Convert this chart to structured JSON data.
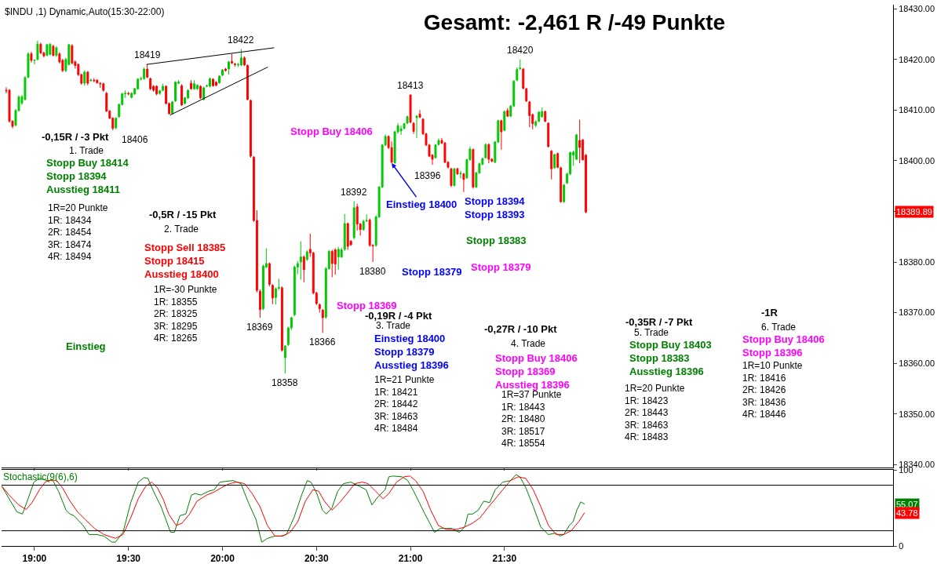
{
  "chart_data": [
    {
      "type": "candlestick",
      "title": "Gesamt: -2,461 R /-49 Punkte",
      "subtitle": "$INDU ,1) Dynamic,Auto(15:30-22:00)",
      "colors": [
        "#ff0000",
        "#ff0000",
        "#ff0000",
        "#00c800",
        "#00c800",
        "#00c800",
        "#00c800",
        "#00c800",
        "#ff0000",
        "#00c800",
        "#00c800",
        "#ff0000",
        "#ff0000",
        "#00c800",
        "#00c800",
        "#ff0000",
        "#00c800",
        "#ff0000",
        "#ff0000",
        "#00c800",
        "#00c800",
        "#ff0000",
        "#ff0000",
        "#ff0000",
        "#ff0000",
        "#00c800",
        "#ff0000",
        "#00c800",
        "#ff0000",
        "#ff0000",
        "#ff0000",
        "#ff0000",
        "#ff0000",
        "#ff0000",
        "#ff0000",
        "#00c800",
        "#00c800",
        "#00c800",
        "#00c800",
        "#ff0000",
        "#00c800",
        "#00c800",
        "#00c800",
        "#00c800",
        "#00c800",
        "#ff0000",
        "#ff0000",
        "#ff0000",
        "#ff0000",
        "#00c800",
        "#00c800",
        "#ff0000",
        "#ff0000",
        "#00c800",
        "#00c800",
        "#00c800",
        "#ff0000",
        "#00c800",
        "#00c800",
        "#ff0000",
        "#00c800",
        "#00c800",
        "#ff0000",
        "#00c800",
        "#00c800",
        "#00c800",
        "#ff0000",
        "#ff0000",
        "#00c800",
        "#00c800",
        "#ff0000",
        "#00c800",
        "#ff0000",
        "#ff0000",
        "#00c800",
        "#00c800",
        "#ff0000",
        "#ff0000",
        "#ff0000",
        "#ff0000",
        "#ff0000",
        "#ff0000",
        "#00c800",
        "#00c800",
        "#ff0000",
        "#ff0000",
        "#00c800",
        "#00c800",
        "#ff0000",
        "#00c800",
        "#00c800",
        "#00c800",
        "#00c800",
        "#00c800",
        "#00c800",
        "#ff0000",
        "#00c800",
        "#ff0000",
        "#ff0000",
        "#ff0000",
        "#ff0000",
        "#ff0000",
        "#00c800",
        "#00c800",
        "#ff0000",
        "#ff0000",
        "#00c800",
        "#00c800",
        "#00c800",
        "#ff0000",
        "#ff0000",
        "#00c800",
        "#ff0000",
        "#ff0000",
        "#00c800",
        "#00c800",
        "#ff0000",
        "#ff0000",
        "#00c800",
        "#00c800",
        "#00c800",
        "#00c800",
        "#ff0000",
        "#ff0000",
        "#00c800",
        "#00c800",
        "#00c800",
        "#00c800",
        "#00c800",
        "#ff0000",
        "#ff0000",
        "#00c800",
        "#ff0000",
        "#ff0000",
        "#ff0000",
        "#ff0000",
        "#ff0000",
        "#00c800",
        "#00c800",
        "#ff0000",
        "#ff0000",
        "#ff0000",
        "#ff0000",
        "#00c800",
        "#ff0000",
        "#00c800",
        "#ff0000",
        "#00c800",
        "#00c800",
        "#ff0000",
        "#00c800",
        "#00c800",
        "#00c800",
        "#00c800",
        "#ff0000",
        "#ff0000",
        "#00c800",
        "#00c800",
        "#ff0000",
        "#00c800",
        "#ff0000",
        "#00c800",
        "#00c800",
        "#00c800",
        "#00c800",
        "#ff0000",
        "#ff0000",
        "#ff0000",
        "#ff0000",
        "#00c800",
        "#00c800",
        "#00c800",
        "#ff0000",
        "#ff0000",
        "#ff0000",
        "#00c800",
        "#ff0000",
        "#ff0000",
        "#00c800",
        "#00c800",
        "#00c800",
        "#00c800",
        "#00c800",
        "#ff0000",
        "#ff0000",
        "#ff0000"
      ],
      "x": [
        18.85,
        18.8667,
        18.8833,
        18.9,
        18.9167,
        18.9333,
        18.95,
        18.9667,
        18.9833,
        19,
        19.0167,
        19.0333,
        19.05,
        19.0667,
        19.0833,
        19.1,
        19.1167,
        19.1333,
        19.15,
        19.1667,
        19.1833,
        19.2,
        19.2167,
        19.2333,
        19.25,
        19.2667,
        19.2833,
        19.3,
        19.3167,
        19.3333,
        19.35,
        19.3667,
        19.3833,
        19.4,
        19.4167,
        19.4333,
        19.45,
        19.4667,
        19.4833,
        19.5,
        19.5167,
        19.5333,
        19.55,
        19.5667,
        19.5833,
        19.6,
        19.6167,
        19.6333,
        19.65,
        19.6667,
        19.6833,
        19.7,
        19.7167,
        19.7333,
        19.75,
        19.7667,
        19.7833,
        19.8,
        19.8167,
        19.8333,
        19.85,
        19.8667,
        19.8833,
        19.9,
        19.9167,
        19.9333,
        19.95,
        19.9667,
        19.9833,
        20,
        20.0167,
        20.0333,
        20.05,
        20.0667,
        20.0833,
        20.1,
        20.1167,
        20.1333,
        20.15,
        20.1667,
        20.1833,
        20.2,
        20.2167,
        20.2333,
        20.25,
        20.2667,
        20.2833,
        20.3,
        20.3167,
        20.3333,
        20.35,
        20.3667,
        20.3833,
        20.4,
        20.4167,
        20.4333,
        20.45,
        20.4667,
        20.4833,
        20.5,
        20.5167,
        20.5333,
        20.55,
        20.5667,
        20.5833,
        20.6,
        20.6167,
        20.6333,
        20.65,
        20.6667,
        20.6833,
        20.7,
        20.7167,
        20.7333,
        20.75,
        20.7667,
        20.7833,
        20.8,
        20.8167,
        20.8333,
        20.85,
        20.8667,
        20.8833,
        20.9,
        20.9167,
        20.9333,
        20.95,
        20.9667,
        20.9833,
        21,
        21.0167,
        21.0333,
        21.05,
        21.0667,
        21.0833,
        21.1,
        21.1167,
        21.1333,
        21.15,
        21.1667,
        21.1833,
        21.2,
        21.2167,
        21.2333,
        21.25,
        21.2667,
        21.2833,
        21.3,
        21.3167,
        21.3333,
        21.35,
        21.3667,
        21.3833,
        21.4,
        21.4167,
        21.4333,
        21.45,
        21.4667,
        21.4833,
        21.5,
        21.5167,
        21.5333,
        21.55,
        21.5667,
        21.5833,
        21.6,
        21.6167,
        21.6333,
        21.65,
        21.6667,
        21.6833,
        21.7,
        21.7167,
        21.7333,
        21.75,
        21.7667,
        21.7833,
        21.8,
        21.8167,
        21.8333,
        21.85,
        21.8667,
        21.8833,
        21.9,
        21.9167,
        21.9333
      ],
      "ohlc": [
        [
          18413.9,
          18414.5,
          18413.3,
          18413.8
        ],
        [
          18413.9,
          18414.2,
          18407.5,
          18407.8
        ],
        [
          18407.8,
          18408.0,
          18406.4,
          18406.8
        ],
        [
          18407.0,
          18410.2,
          18406.8,
          18409.9
        ],
        [
          18409.9,
          18412.9,
          18409.7,
          18412.6
        ],
        [
          18411.4,
          18413.0,
          18411.0,
          18412.6
        ],
        [
          18412.1,
          18416.7,
          18411.9,
          18416.4
        ],
        [
          18416.5,
          18421.4,
          18416.3,
          18421.1
        ],
        [
          18421.1,
          18421.5,
          18419.4,
          18419.8
        ],
        [
          18419.8,
          18420.0,
          18419.0,
          18419.9
        ],
        [
          18420.0,
          18423.7,
          18419.8,
          18423.0
        ],
        [
          18423.0,
          18423.3,
          18421.0,
          18421.3
        ],
        [
          18421.3,
          18421.5,
          18420.4,
          18420.7
        ],
        [
          18420.8,
          18423.1,
          18420.6,
          18422.9
        ],
        [
          18421.0,
          18423.2,
          18420.8,
          18423.0
        ],
        [
          18422.6,
          18422.9,
          18420.6,
          18420.8
        ],
        [
          18420.8,
          18422.6,
          18420.5,
          18422.3
        ],
        [
          18421.1,
          18421.4,
          18419.2,
          18419.5
        ],
        [
          18419.8,
          18420.1,
          18417.5,
          18417.8
        ],
        [
          18417.8,
          18420.3,
          18417.5,
          18420.0
        ],
        [
          18419.0,
          18423.1,
          18418.8,
          18422.9
        ],
        [
          18422.7,
          18423.0,
          18419.0,
          18419.3
        ],
        [
          18419.5,
          18419.8,
          18418.2,
          18418.8
        ],
        [
          18419.0,
          18419.2,
          18416.7,
          18417.0
        ],
        [
          18417.0,
          18417.2,
          18415.0,
          18415.3
        ],
        [
          18415.3,
          18417.8,
          18414.8,
          18417.5
        ],
        [
          18417.5,
          18417.7,
          18414.9,
          18415.3
        ],
        [
          18415.8,
          18416.2,
          18415.6,
          18415.9
        ],
        [
          18415.9,
          18416.3,
          18415.5,
          18415.8
        ],
        [
          18415.9,
          18416.1,
          18415.2,
          18415.4
        ],
        [
          18415.3,
          18415.5,
          18414.4,
          18415.2
        ],
        [
          18415.2,
          18415.4,
          18413.6,
          18413.9
        ],
        [
          18413.3,
          18413.6,
          18409.6,
          18409.8
        ],
        [
          18409.8,
          18410.0,
          18408.2,
          18408.4
        ],
        [
          18408.4,
          18408.6,
          18406.0,
          18406.4
        ],
        [
          18406.5,
          18408.6,
          18406.2,
          18408.4
        ],
        [
          18408.7,
          18411.3,
          18408.5,
          18411.1
        ],
        [
          18411.1,
          18413.4,
          18410.9,
          18413.2
        ],
        [
          18413.2,
          18413.9,
          18412.4,
          18413.3
        ],
        [
          18413.3,
          18413.6,
          18412.9,
          18413.2
        ],
        [
          18412.5,
          18413.5,
          18412.3,
          18413.3
        ],
        [
          18413.2,
          18414.4,
          18413.0,
          18414.2
        ],
        [
          18414.2,
          18416.3,
          18414.0,
          18416.1
        ],
        [
          18416.1,
          18416.6,
          18415.9,
          18416.2
        ],
        [
          18416.2,
          18418.4,
          18416.0,
          18418.1
        ],
        [
          18418.1,
          18419.0,
          18416.3,
          18416.5
        ],
        [
          18416.2,
          18416.4,
          18413.9,
          18414.2
        ],
        [
          18414.7,
          18414.9,
          18413.6,
          18413.9
        ],
        [
          18414.7,
          18414.9,
          18412.9,
          18413.2
        ],
        [
          18413.3,
          18414.0,
          18413.0,
          18413.8
        ],
        [
          18413.9,
          18415.2,
          18413.7,
          18414.7
        ],
        [
          18414.7,
          18414.9,
          18411.1,
          18411.3
        ],
        [
          18411.3,
          18411.5,
          18409.1,
          18409.3
        ],
        [
          18409.3,
          18411.8,
          18409.1,
          18411.6
        ],
        [
          18411.8,
          18415.7,
          18411.6,
          18415.5
        ],
        [
          18415.3,
          18415.9,
          18415.1,
          18415.5
        ],
        [
          18414.8,
          18415.1,
          18410.8,
          18411.0
        ],
        [
          18411.3,
          18412.6,
          18411.1,
          18412.4
        ],
        [
          18412.4,
          18414.1,
          18412.2,
          18413.9
        ],
        [
          18415.3,
          18415.9,
          18414.0,
          18414.2
        ],
        [
          18414.2,
          18415.9,
          18414.0,
          18415.2
        ],
        [
          18414.2,
          18415.1,
          18414.0,
          18414.9
        ],
        [
          18414.7,
          18414.9,
          18412.2,
          18412.4
        ],
        [
          18412.1,
          18414.6,
          18411.9,
          18414.4
        ],
        [
          18414.7,
          18415.0,
          18414.5,
          18414.8
        ],
        [
          18414.7,
          18416.4,
          18414.5,
          18416.2
        ],
        [
          18416.1,
          18416.3,
          18414.6,
          18414.8
        ],
        [
          18415.5,
          18415.7,
          18414.7,
          18414.9
        ],
        [
          18415.4,
          18416.9,
          18415.2,
          18416.7
        ],
        [
          18416.9,
          18418.1,
          18416.7,
          18417.9
        ],
        [
          18418.1,
          18418.3,
          18417.6,
          18417.8
        ],
        [
          18418.1,
          18419.7,
          18417.0,
          18419.5
        ],
        [
          18419.6,
          18421.1,
          18419.1,
          18419.3
        ],
        [
          18419.1,
          18419.3,
          18418.6,
          18419.0
        ],
        [
          18418.9,
          18419.3,
          18418.5,
          18419.0
        ],
        [
          18418.9,
          18422.0,
          18418.7,
          18420.3
        ],
        [
          18420.3,
          18420.6,
          18418.7,
          18418.9
        ],
        [
          18418.8,
          18419.0,
          18411.9,
          18412.1
        ],
        [
          18411.9,
          18412.1,
          18400.6,
          18400.9
        ],
        [
          18400.7,
          18400.9,
          18387.9,
          18388.2
        ],
        [
          18388.2,
          18390.2,
          18374.0,
          18374.4
        ],
        [
          18374.2,
          18374.6,
          18369.0,
          18370.6
        ],
        [
          18370.8,
          18379.5,
          18370.5,
          18379.2
        ],
        [
          18379.0,
          18382.7,
          18378.8,
          18379.7
        ],
        [
          18379.7,
          18379.9,
          18375.2,
          18375.6
        ],
        [
          18375.4,
          18375.6,
          18371.7,
          18372.9
        ],
        [
          18373.0,
          18375.0,
          18371.6,
          18374.7
        ],
        [
          18374.8,
          18376.7,
          18374.5,
          18375.0
        ],
        [
          18374.9,
          18375.2,
          18362.3,
          18362.6
        ],
        [
          18361.1,
          18363.6,
          18358.0,
          18363.4
        ],
        [
          18363.7,
          18367.2,
          18363.4,
          18367.0
        ],
        [
          18367.0,
          18369.2,
          18366.6,
          18369.0
        ],
        [
          18369.6,
          18379.3,
          18369.3,
          18379.0
        ],
        [
          18379.0,
          18380.2,
          18377.6,
          18379.7
        ],
        [
          18380.0,
          18384.1,
          18376.5,
          18381.0
        ],
        [
          18381.0,
          18381.3,
          18376.0,
          18378.5
        ],
        [
          18380.5,
          18382.3,
          18380.2,
          18382.0
        ],
        [
          18382.5,
          18385.6,
          18381.0,
          18381.8
        ],
        [
          18381.8,
          18382.0,
          18373.6,
          18373.9
        ],
        [
          18373.9,
          18374.1,
          18371.5,
          18371.8
        ],
        [
          18371.6,
          18371.8,
          18370.0,
          18370.8
        ],
        [
          18370.5,
          18370.7,
          18366.0,
          18369.0
        ],
        [
          18369.1,
          18379.0,
          18368.8,
          18378.7
        ],
        [
          18378.7,
          18382.4,
          18378.5,
          18382.1
        ],
        [
          18382.1,
          18382.4,
          18377.0,
          18379.7
        ],
        [
          18382.4,
          18382.7,
          18377.5,
          18379.6
        ],
        [
          18381.0,
          18383.0,
          18378.5,
          18382.5
        ],
        [
          18381.0,
          18382.8,
          18380.8,
          18382.4
        ],
        [
          18382.5,
          18389.5,
          18382.2,
          18387.6
        ],
        [
          18387.6,
          18387.8,
          18382.4,
          18383.1
        ],
        [
          18384.1,
          18384.3,
          18383.2,
          18383.4
        ],
        [
          18384.8,
          18392.0,
          18384.5,
          18390.7
        ],
        [
          18390.9,
          18391.5,
          18386.2,
          18387.5
        ],
        [
          18387.5,
          18387.7,
          18385.2,
          18386.4
        ],
        [
          18386.4,
          18388.4,
          18386.2,
          18388.0
        ],
        [
          18388.1,
          18389.4,
          18387.9,
          18388.2
        ],
        [
          18388.3,
          18388.6,
          18383.0,
          18383.3
        ],
        [
          18383.3,
          18383.5,
          18380.0,
          18383.2
        ],
        [
          18383.3,
          18389.2,
          18383.0,
          18388.9
        ],
        [
          18388.9,
          18395.0,
          18388.7,
          18394.8
        ],
        [
          18394.8,
          18403.3,
          18394.6,
          18403.1
        ],
        [
          18403.1,
          18405.2,
          18402.9,
          18404.8
        ],
        [
          18404.8,
          18405.0,
          18402.3,
          18402.6
        ],
        [
          18402.6,
          18403.8,
          18399.5,
          18399.7
        ],
        [
          18399.6,
          18405.9,
          18399.4,
          18405.7
        ],
        [
          18405.7,
          18407.4,
          18405.4,
          18406.9
        ],
        [
          18405.9,
          18406.9,
          18405.1,
          18406.3
        ],
        [
          18406.4,
          18407.5,
          18406.2,
          18407.3
        ],
        [
          18407.4,
          18408.9,
          18407.2,
          18408.7
        ],
        [
          18413.0,
          18413.0,
          18407.4,
          18407.6
        ],
        [
          18407.4,
          18407.6,
          18405.3,
          18405.8
        ],
        [
          18408.5,
          18409.0,
          18404.5,
          18408.8
        ],
        [
          18409.2,
          18410.0,
          18408.4,
          18408.6
        ],
        [
          18408.2,
          18408.4,
          18405.1,
          18405.3
        ],
        [
          18405.3,
          18405.5,
          18402.9,
          18403.1
        ],
        [
          18403.1,
          18403.3,
          18400.7,
          18400.9
        ],
        [
          18401.1,
          18401.3,
          18399.2,
          18400.3
        ],
        [
          18400.6,
          18403.3,
          18400.4,
          18403.1
        ],
        [
          18403.2,
          18404.4,
          18403.0,
          18404.0
        ],
        [
          18404.0,
          18404.5,
          18403.3,
          18403.5
        ],
        [
          18403.5,
          18403.7,
          18399.5,
          18399.7
        ],
        [
          18399.7,
          18399.9,
          18398.5,
          18398.7
        ],
        [
          18398.4,
          18398.6,
          18394.8,
          18395.1
        ],
        [
          18395.1,
          18398.6,
          18394.9,
          18398.4
        ],
        [
          18398.4,
          18398.6,
          18397.2,
          18397.4
        ],
        [
          18397.4,
          18398.0,
          18396.5,
          18397.5
        ],
        [
          18397.4,
          18397.6,
          18393.8,
          18396.3
        ],
        [
          18396.6,
          18400.4,
          18396.4,
          18400.2
        ],
        [
          18400.2,
          18402.8,
          18400.0,
          18402.3
        ],
        [
          18402.2,
          18402.4,
          18394.5,
          18394.8
        ],
        [
          18394.8,
          18397.8,
          18394.6,
          18397.6
        ],
        [
          18397.6,
          18399.6,
          18397.4,
          18399.4
        ],
        [
          18399.3,
          18400.6,
          18399.1,
          18400.4
        ],
        [
          18400.6,
          18403.4,
          18400.4,
          18403.2
        ],
        [
          18403.2,
          18403.4,
          18399.5,
          18400.3
        ],
        [
          18400.3,
          18400.5,
          18399.7,
          18399.9
        ],
        [
          18399.7,
          18403.9,
          18399.5,
          18403.7
        ],
        [
          18403.7,
          18408.1,
          18403.5,
          18407.9
        ],
        [
          18407.9,
          18408.1,
          18402.2,
          18405.7
        ],
        [
          18406.0,
          18409.9,
          18405.8,
          18409.7
        ],
        [
          18409.9,
          18410.4,
          18408.6,
          18408.8
        ],
        [
          18408.8,
          18411.0,
          18408.6,
          18410.8
        ],
        [
          18410.8,
          18415.9,
          18410.6,
          18415.7
        ],
        [
          18415.9,
          18418.4,
          18415.7,
          18418.0
        ],
        [
          18418.2,
          18420.0,
          18417.9,
          18418.3
        ],
        [
          18418.1,
          18418.3,
          18414.1,
          18414.3
        ],
        [
          18414.2,
          18414.4,
          18411.6,
          18411.8
        ],
        [
          18411.6,
          18411.8,
          18406.6,
          18408.9
        ],
        [
          18409.1,
          18409.3,
          18406.2,
          18407.3
        ],
        [
          18407.0,
          18408.0,
          18406.6,
          18407.7
        ],
        [
          18407.8,
          18409.8,
          18407.6,
          18409.6
        ],
        [
          18408.7,
          18410.5,
          18408.5,
          18409.7
        ],
        [
          18409.7,
          18409.9,
          18407.6,
          18407.8
        ],
        [
          18407.4,
          18407.6,
          18402.6,
          18402.8
        ],
        [
          18401.9,
          18402.1,
          18396.3,
          18398.4
        ],
        [
          18398.6,
          18401.4,
          18398.4,
          18401.2
        ],
        [
          18401.4,
          18401.6,
          18398.5,
          18398.7
        ],
        [
          18398.6,
          18398.8,
          18391.7,
          18391.9
        ],
        [
          18391.9,
          18395.4,
          18391.7,
          18395.2
        ],
        [
          18395.6,
          18397.6,
          18395.4,
          18397.4
        ],
        [
          18397.4,
          18401.8,
          18397.2,
          18401.6
        ],
        [
          18401.1,
          18402.0,
          18399.0,
          18401.7
        ],
        [
          18400.3,
          18405.3,
          18400.1,
          18405.1
        ],
        [
          18404.0,
          18408.1,
          18399.5,
          18402.6
        ],
        [
          18404.1,
          18404.3,
          18400.0,
          18400.2
        ],
        [
          18401.1,
          18401.3,
          18389.6,
          18389.89
        ]
      ],
      "series": [
        {
          "type": "line",
          "color": "#000000",
          "x": [
            19.5958,
            20.275
          ],
          "values": [
            18419.0,
            18422.3
          ]
        },
        {
          "type": "line",
          "color": "#000000",
          "x": [
            19.7208,
            20.2417
          ],
          "values": [
            18409.0,
            18418.5
          ]
        }
      ],
      "xlim": [
        18.825,
        23.567
      ],
      "xticks": [
        {
          "value": 19,
          "label": null
        },
        {
          "value": 19.5,
          "label": null
        },
        {
          "value": 20,
          "label": null
        },
        {
          "value": 20.5,
          "label": null
        },
        {
          "value": 21,
          "label": null
        },
        {
          "value": 21.5,
          "label": null
        }
      ],
      "ylim": [
        18339.4,
        18430.8
      ],
      "yticks": [
        {
          "value": 18340,
          "label": "18340.00"
        },
        {
          "value": 18350,
          "label": "18350.00"
        },
        {
          "value": 18360,
          "label": "18360.00"
        },
        {
          "value": 18370,
          "label": "18370.00"
        },
        {
          "value": 18380,
          "label": "18380.00"
        },
        {
          "value": 18390,
          "label": null
        },
        {
          "value": 18400,
          "label": "18400.00"
        },
        {
          "value": 18410,
          "label": "18410.00"
        },
        {
          "value": 18420,
          "label": "18420.00"
        },
        {
          "value": 18430,
          "label": "18430.00"
        }
      ],
      "tick_labels": "y",
      "annotations": [
        {
          "text": "18419",
          "x": 19.6,
          "y": 18419.0
        },
        {
          "text": "18422",
          "x": 20.1,
          "y": 18422.0
        },
        {
          "text": "18406",
          "x": 19.4333,
          "y": 18406.0
        },
        "-0,15R / -3 Pkt",
        "1. Trade",
        "Stopp Buy 18414\nStopp 18394\nAusstieg 18411",
        "1R=20 Punkte\n1R: 18434\n2R: 18454\n3R: 18474\n4R: 18494",
        "Einstieg",
        "-0,5R / -15 Pkt",
        "2. Trade",
        "Stopp Sell 18385\nStopp 18415\nAusstieg 18400",
        "1R=-30 Punkte\n1R: 18355\n2R: 18325\n3R: 18295\n4R: 18265",
        {
          "text": "18369",
          "x": 20.2,
          "y": 18369.0
        },
        {
          "text": "18366",
          "x": 20.5333,
          "y": 18366.0
        },
        {
          "text": "18358",
          "x": 20.3333,
          "y": 18358.0
        },
        {
          "text": "18392",
          "x": 20.7,
          "y": 18392.0
        },
        {
          "text": "18380",
          "x": 20.8,
          "y": 18380.0
        },
        {
          "text": "18413",
          "x": 21.0,
          "y": 18413.0
        },
        "18396",
        {
          "text": "18420",
          "x": 21.5833,
          "y": 18420.0
        },
        "Stopp Buy 18406",
        {
          "text": "Einstieg 18400",
          "x": 20.9,
          "y": 18399.5
        },
        "Stopp 18394\nStopp 18393",
        "Stopp 18383",
        "Stopp 18379",
        "Stopp 18379",
        "Stopp 18369",
        "-0,19R / -4 Pkt",
        "3. Trade",
        "Einstieg 18400\nStopp 18379\nAusstieg 18396",
        "1R=21 Punkte\n1R: 18421\n2R: 18442\n3R: 18463\n4R: 18484",
        "-0,27R / -10 Pkt",
        "4. Trade",
        "Stopp Buy 18406\nStopp 18369\nAusstieg 18396",
        "1R=37 Punkte\n1R: 18443\n2R: 18480\n3R: 18517\n4R: 18554",
        "-0,35R / -7 Pkt",
        "5. Trade",
        "Stopp Buy 18403\nStopp 18383\nAusstieg 18396",
        "1R=20 Punkte\n1R: 18423\n2R: 18443\n3R: 18463\n4R: 18483",
        "-1R",
        "6. Trade",
        "Stopp Buy 18406\nStopp 18396",
        "1R=10 Punkte\n1R: 18416\n2R: 18426\n3R: 18436\n4R: 18446",
        "18389.89"
      ]
    },
    {
      "type": "line",
      "series": [
        {
          "color": "#008000",
          "x": [
            18.825,
            18.906,
            18.936,
            18.966,
            18.997,
            19.027,
            19.067,
            19.098,
            19.128,
            19.168,
            19.189,
            19.209,
            19.259,
            19.29,
            19.33,
            19.37,
            19.411,
            19.431,
            19.471,
            19.512,
            19.552,
            19.583,
            19.603,
            19.633,
            19.673,
            19.724,
            19.744,
            19.774,
            19.805,
            19.835,
            19.855,
            19.886,
            19.926,
            19.956,
            19.987,
            20.017,
            20.057,
            20.098,
            20.138,
            20.178,
            20.209,
            20.239,
            20.279,
            20.31,
            20.34,
            20.38,
            20.421,
            20.451,
            20.471,
            20.502,
            20.532,
            20.552,
            20.582,
            20.613,
            20.643,
            20.683,
            20.724,
            20.764,
            20.795,
            20.825,
            20.845,
            20.865,
            20.885,
            20.906,
            20.956,
            20.986,
            21.017,
            21.047,
            21.077,
            21.128,
            21.158,
            21.188,
            21.219,
            21.259,
            21.289,
            21.306,
            21.33,
            21.36,
            21.39,
            21.421,
            21.451,
            21.491,
            21.532,
            21.562,
            21.582,
            21.613,
            21.653,
            21.693,
            21.734,
            21.774,
            21.794,
            21.815,
            21.845,
            21.865,
            21.885,
            21.906,
            21.926
          ],
          "values": [
            79,
            45,
            42,
            62,
            84,
            89,
            86,
            86,
            72,
            47,
            42,
            40,
            27,
            15,
            15,
            13,
            5,
            5,
            18,
            57,
            84,
            90,
            89,
            72,
            52,
            18,
            18,
            40,
            42,
            67,
            69,
            67,
            72,
            74,
            84,
            85,
            86,
            82,
            57,
            35,
            5,
            10,
            13,
            13,
            15,
            37,
            67,
            86,
            84,
            69,
            47,
            42,
            50,
            72,
            82,
            84,
            79,
            74,
            54,
            64,
            69,
            74,
            91,
            92,
            91,
            86,
            72,
            57,
            42,
            18,
            23,
            23,
            23,
            18,
            25,
            42,
            42,
            47,
            59,
            57,
            74,
            84,
            86,
            94,
            91,
            77,
            52,
            25,
            15,
            17,
            13,
            15,
            27,
            32,
            47,
            58,
            55.07
          ]
        },
        {
          "color": "#ff0000",
          "x": [
            18.825,
            18.865,
            18.916,
            18.956,
            18.987,
            19.027,
            19.057,
            19.088,
            19.118,
            19.148,
            19.189,
            19.229,
            19.269,
            19.32,
            19.37,
            19.431,
            19.471,
            19.512,
            19.552,
            19.593,
            19.623,
            19.653,
            19.684,
            19.714,
            19.754,
            19.785,
            19.825,
            19.865,
            19.916,
            19.956,
            19.997,
            20.037,
            20.077,
            20.118,
            20.158,
            20.199,
            20.239,
            20.279,
            20.32,
            20.36,
            20.401,
            20.441,
            20.481,
            20.512,
            20.542,
            20.582,
            20.623,
            20.663,
            20.704,
            20.744,
            20.774,
            20.815,
            20.855,
            20.885,
            20.926,
            20.966,
            20.997,
            21.027,
            21.067,
            21.108,
            21.148,
            21.188,
            21.249,
            21.289,
            21.33,
            21.37,
            21.411,
            21.451,
            21.491,
            21.532,
            21.572,
            21.613,
            21.653,
            21.693,
            21.734,
            21.774,
            21.815,
            21.855,
            21.895,
            21.926
          ],
          "values": [
            79,
            67,
            54,
            48,
            57,
            74,
            84,
            87,
            86,
            77,
            59,
            45,
            35,
            23,
            15,
            10,
            15,
            37,
            62,
            79,
            84,
            77,
            62,
            42,
            27,
            30,
            42,
            59,
            67,
            71,
            77,
            82,
            84,
            82,
            69,
            52,
            27,
            13,
            13,
            18,
            32,
            59,
            74,
            72,
            59,
            47,
            57,
            69,
            82,
            84,
            82,
            72,
            62,
            69,
            84,
            91,
            92,
            86,
            72,
            47,
            27,
            22,
            22,
            25,
            30,
            37,
            50,
            62,
            74,
            86,
            91,
            89,
            74,
            52,
            27,
            15,
            15,
            20,
            32,
            43.78
          ]
        }
      ],
      "xlim": [
        18.825,
        23.567
      ],
      "xticks": [
        {
          "value": 19,
          "label": "19:00"
        },
        {
          "value": 19.5,
          "label": "19:30"
        },
        {
          "value": 20,
          "label": "20:00"
        },
        {
          "value": 20.5,
          "label": "20:30"
        },
        {
          "value": 21,
          "label": "21:00"
        },
        {
          "value": 21.5,
          "label": "21:30"
        }
      ],
      "ylim": [
        0,
        100
      ],
      "yticks": [
        0,
        100
      ],
      "ref_lines": [
        {
          "axis": "y",
          "value": 80,
          "color": "#000000"
        },
        {
          "axis": "y",
          "value": 20,
          "color": "#000000"
        }
      ],
      "annotations": [
        "Stochastic(9(6),6)",
        "55.07",
        "43.78"
      ]
    }
  ]
}
